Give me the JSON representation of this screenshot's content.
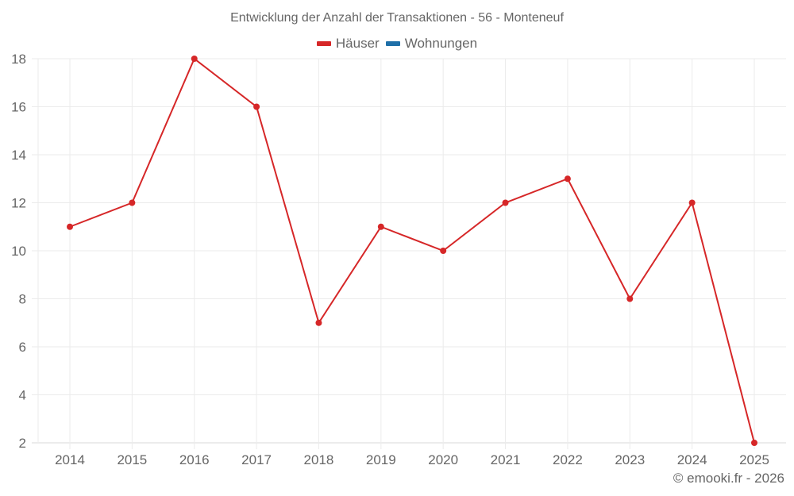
{
  "title": "Entwicklung der Anzahl der Transaktionen - 56 - Monteneuf",
  "legend": [
    {
      "label": "Häuser",
      "color": "#d62728"
    },
    {
      "label": "Wohnungen",
      "color": "#1f6fa8"
    }
  ],
  "credit": "© emooki.fr - 2026",
  "chart_data": {
    "type": "line",
    "title": "Entwicklung der Anzahl der Transaktionen - 56 - Monteneuf",
    "xlabel": "",
    "ylabel": "",
    "categories": [
      "2014",
      "2015",
      "2016",
      "2017",
      "2018",
      "2019",
      "2020",
      "2021",
      "2022",
      "2023",
      "2024",
      "2025"
    ],
    "series": [
      {
        "name": "Häuser",
        "color": "#d62728",
        "values": [
          11,
          12,
          18,
          16,
          7,
          11,
          10,
          12,
          13,
          8,
          12,
          2
        ]
      },
      {
        "name": "Wohnungen",
        "color": "#1f6fa8",
        "values": []
      }
    ],
    "yticks": [
      2,
      4,
      6,
      8,
      10,
      12,
      14,
      16,
      18
    ],
    "ylim": [
      2,
      18
    ],
    "grid": true,
    "legend_position": "top"
  }
}
